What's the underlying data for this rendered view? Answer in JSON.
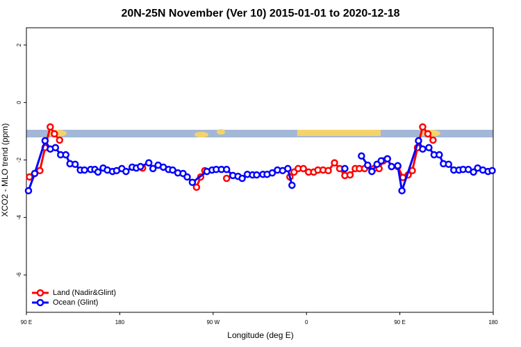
{
  "chart_data": {
    "type": "line",
    "title": "20N-25N November (Ver 10)   2015-01-01 to 2020-12-18",
    "x_label": "Longitude (deg E)",
    "y_label": "XCO2 - MLO trend (ppm)",
    "xlim": [
      90,
      540
    ],
    "xticks": [
      {
        "value": 90,
        "label": "90 E"
      },
      180,
      {
        "value": 270,
        "label": "90 W"
      },
      {
        "value": 360,
        "label": "0"
      },
      {
        "value": 450,
        "label": "90 E"
      },
      {
        "value": 540,
        "label": "180"
      }
    ],
    "ylim": [
      -7.3,
      2.6
    ],
    "yticks": [
      2,
      0,
      -2,
      -4,
      -6
    ],
    "legend": "bottom-left",
    "series": [
      {
        "name": "Land (Nadir&Glint)",
        "color": "#ff0000",
        "x": [
          93,
          98,
          103,
          108,
          113,
          117,
          122,
          160,
          202,
          230,
          254,
          258,
          262,
          270,
          283,
          310,
          344,
          348,
          352,
          357,
          362,
          367,
          371,
          376,
          381,
          387,
          392,
          397,
          402,
          407,
          411,
          416,
          425,
          430,
          434,
          438,
          442,
          448,
          453,
          458,
          462,
          467,
          472,
          477,
          482
        ],
        "values": [
          -2.59,
          -2.47,
          -2.37,
          -1.57,
          -0.85,
          -1.09,
          -1.31,
          null,
          -2.28,
          null,
          -2.95,
          -2.59,
          -2.37,
          null,
          -2.64,
          null,
          -2.59,
          -2.42,
          -2.3,
          -2.3,
          -2.42,
          -2.42,
          -2.35,
          -2.35,
          -2.37,
          -2.1,
          -2.3,
          -2.54,
          -2.52,
          -2.3,
          -2.3,
          -2.3,
          -2.3,
          -2.3,
          -2.03,
          -1.96,
          -2.23,
          -2.23,
          -2.61,
          -2.52,
          -2.37,
          -1.57,
          -0.85,
          -1.09,
          -1.31
        ]
      },
      {
        "name": "Ocean (Glint)",
        "color": "#0000ff",
        "x": [
          92,
          98,
          108,
          113,
          118,
          123,
          128,
          132,
          137,
          142,
          146,
          152,
          156,
          159,
          164,
          168,
          173,
          177,
          182,
          186,
          192,
          196,
          200,
          208,
          212,
          217,
          222,
          227,
          231,
          236,
          241,
          245,
          250,
          264,
          269,
          273,
          278,
          283,
          289,
          294,
          298,
          303,
          308,
          312,
          318,
          322,
          327,
          332,
          337,
          342,
          346,
          380,
          397,
          405,
          413,
          419,
          423,
          428,
          432,
          438,
          442,
          448,
          452,
          468,
          472,
          478,
          483,
          488,
          492,
          497,
          502,
          507,
          511,
          516,
          521,
          525,
          530,
          535,
          539
        ],
        "values": [
          -3.07,
          -2.47,
          -1.33,
          -1.62,
          -1.57,
          -1.82,
          -1.82,
          -2.13,
          -2.15,
          -2.35,
          -2.35,
          -2.33,
          -2.33,
          -2.42,
          -2.28,
          -2.35,
          -2.4,
          -2.37,
          -2.3,
          -2.4,
          -2.25,
          -2.28,
          -2.23,
          -2.1,
          -2.3,
          -2.18,
          -2.25,
          -2.33,
          -2.35,
          -2.45,
          -2.47,
          -2.59,
          -2.78,
          -2.4,
          -2.35,
          -2.33,
          -2.33,
          -2.33,
          -2.54,
          -2.57,
          -2.64,
          -2.5,
          -2.52,
          -2.52,
          -2.5,
          -2.5,
          -2.45,
          -2.35,
          -2.37,
          -2.3,
          -2.88,
          null,
          -2.3,
          null,
          -1.86,
          -2.18,
          -2.4,
          -2.15,
          -2.03,
          -1.96,
          -2.23,
          -2.2,
          -3.07,
          -1.33,
          -1.62,
          -1.57,
          -1.82,
          -1.82,
          -2.13,
          -2.15,
          -2.35,
          -2.35,
          -2.33,
          -2.33,
          -2.42,
          -2.28,
          -2.35,
          -2.4,
          -2.37
        ]
      }
    ]
  }
}
